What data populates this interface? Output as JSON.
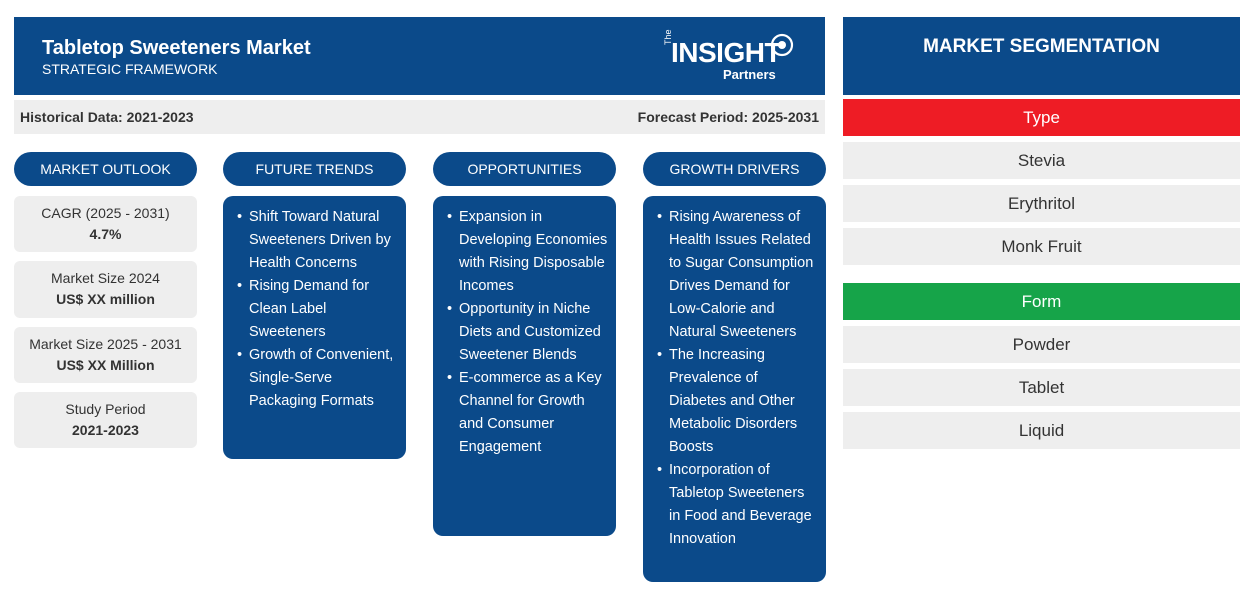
{
  "header": {
    "title": "Tabletop Sweeteners Market",
    "subtitle": "STRATEGIC FRAMEWORK",
    "logo_the": "The",
    "logo_insight": "INSIGHT",
    "logo_partners": "Partners"
  },
  "period": {
    "historical": "Historical Data: 2021-2023",
    "forecast": "Forecast Period: 2025-2031"
  },
  "columns": {
    "outlook": "MARKET OUTLOOK",
    "trends": "FUTURE TRENDS",
    "opportunities": "OPPORTUNITIES",
    "drivers": "GROWTH DRIVERS"
  },
  "outlook_cards": [
    {
      "label": "CAGR (2025 - 2031)",
      "value": "4.7%"
    },
    {
      "label": "Market Size 2024",
      "value": "US$ XX million"
    },
    {
      "label": "Market Size 2025 - 2031",
      "value": "US$ XX Million"
    },
    {
      "label": "Study Period",
      "value": "2021-2023"
    }
  ],
  "trends": [
    "Shift Toward Natural Sweeteners Driven by Health Concerns",
    "Rising Demand for Clean Label Sweeteners",
    "Growth of Convenient, Single-Serve Packaging Formats"
  ],
  "opportunities": [
    "Expansion in Developing Economies with Rising Disposable Incomes",
    "Opportunity in Niche Diets and Customized Sweetener Blends",
    "E-commerce as a Key Channel for Growth and Consumer Engagement"
  ],
  "drivers": [
    "Rising Awareness of Health Issues Related to Sugar Consumption Drives Demand for Low-Calorie and Natural Sweeteners",
    "The Increasing Prevalence of Diabetes and Other Metabolic Disorders Boosts",
    "Incorporation of Tabletop Sweeteners in Food and Beverage Innovation"
  ],
  "segmentation": {
    "title": "MARKET SEGMENTATION",
    "groups": [
      {
        "name": "Type",
        "color": "#ee1c25",
        "items": [
          "Stevia",
          "Erythritol",
          "Monk Fruit"
        ]
      },
      {
        "name": "Form",
        "color": "#16a449",
        "items": [
          "Powder",
          "Tablet",
          "Liquid"
        ]
      }
    ]
  },
  "colors": {
    "primary": "#0b4a8a",
    "panel": "#eeeeee"
  }
}
